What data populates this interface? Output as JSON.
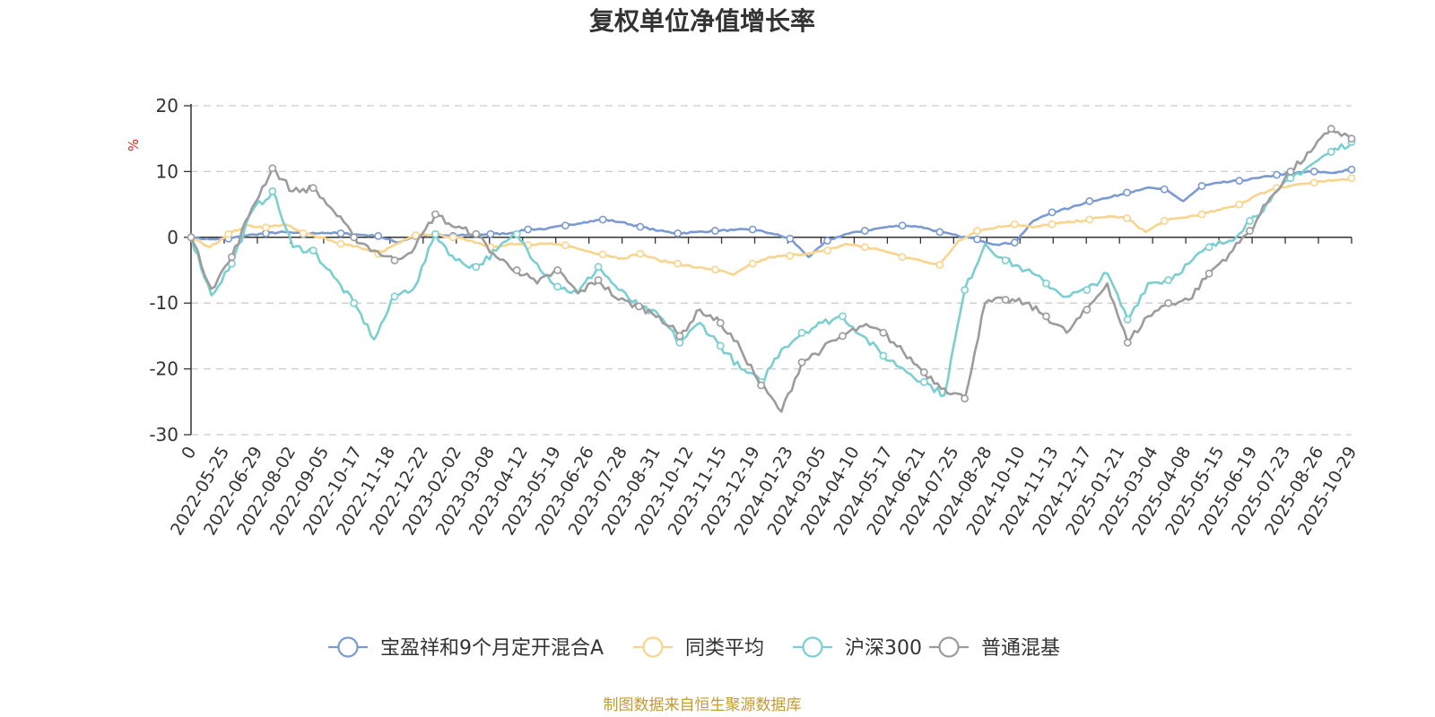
{
  "chart_data": {
    "type": "line",
    "title": "复权单位净值增长率",
    "ylabel": "%",
    "ylim": [
      -30,
      20
    ],
    "yticks": [
      20,
      10,
      0,
      -10,
      -20,
      -30
    ],
    "grid": "horizontal dashed",
    "legend_position": "bottom",
    "source_note": "制图数据来自恒生聚源数据库",
    "x_tick_labels": [
      "0",
      "2022-05-25",
      "2022-06-29",
      "2022-08-02",
      "2022-09-05",
      "2022-10-17",
      "2022-11-18",
      "2022-12-22",
      "2023-02-02",
      "2023-03-08",
      "2023-04-12",
      "2023-05-19",
      "2023-06-26",
      "2023-07-28",
      "2023-08-31",
      "2023-10-12",
      "2023-11-15",
      "2023-12-19",
      "2024-01-23",
      "2024-03-05",
      "2024-04-10",
      "2024-05-17",
      "2024-06-21",
      "2024-07-25",
      "2024-08-28",
      "2024-10-10",
      "2024-11-13",
      "2024-12-17",
      "2025-01-21",
      "2025-03-04",
      "2025-04-08",
      "2025-05-15",
      "2025-06-19",
      "2025-07-23",
      "2025-08-26",
      "2025-10-29"
    ],
    "series": [
      {
        "name": "宝盈祥和9个月定开混合A",
        "color": "#7b9ad2",
        "values": [
          0,
          -0.3,
          -0.2,
          0.3,
          0.6,
          0.8,
          0.5,
          0.7,
          0.6,
          0.4,
          0.2,
          -0.8,
          0.2,
          0.3,
          0.2,
          0.4,
          0.5,
          0.6,
          1.2,
          1.3,
          1.8,
          2.3,
          2.7,
          2.3,
          1.6,
          1.0,
          0.6,
          0.8,
          1.0,
          1.1,
          1.2,
          0.6,
          -0.2,
          -3.0,
          -0.5,
          0.5,
          1.0,
          1.5,
          1.8,
          1.6,
          0.8,
          0.2,
          -0.3,
          -1.1,
          -0.8,
          2.5,
          3.8,
          4.5,
          5.5,
          6.0,
          6.8,
          7.5,
          7.3,
          5.5,
          7.8,
          8.3,
          8.6,
          9.0,
          9.5,
          9.8,
          10.0,
          9.8,
          10.3
        ]
      },
      {
        "name": "同类平均",
        "color": "#f9d48d",
        "values": [
          0,
          -1.5,
          0.5,
          1.8,
          1.5,
          2.0,
          0.6,
          0.0,
          -1.0,
          -1.5,
          -2.5,
          -1.0,
          0.3,
          0.5,
          0.0,
          -0.5,
          -1.5,
          -1.0,
          -1.2,
          -1.0,
          -1.2,
          -2.0,
          -2.6,
          -3.2,
          -2.5,
          -3.5,
          -4.0,
          -4.6,
          -4.9,
          -5.7,
          -4.0,
          -3.0,
          -2.8,
          -2.4,
          -2.0,
          -1.0,
          -1.5,
          -2.0,
          -3.0,
          -3.5,
          -4.2,
          -0.5,
          1.0,
          1.5,
          2.0,
          1.5,
          2.0,
          2.3,
          2.7,
          3.2,
          2.9,
          0.8,
          2.5,
          3.0,
          3.5,
          4.2,
          5.0,
          6.5,
          7.5,
          8.0,
          8.3,
          8.6,
          9.0
        ]
      },
      {
        "name": "沪深300",
        "color": "#7ccfd0",
        "values": [
          0,
          -8.8,
          -4.0,
          4.0,
          7.0,
          -1.5,
          -2.0,
          -6.0,
          -10.0,
          -15.5,
          -9.0,
          -7.5,
          0.5,
          -3.5,
          -4.5,
          -2.0,
          0.5,
          -4.0,
          -7.5,
          -8.5,
          -4.5,
          -8.0,
          -10.5,
          -12.0,
          -16.0,
          -13.0,
          -16.5,
          -20.0,
          -22.0,
          -17.0,
          -14.5,
          -13.0,
          -12.0,
          -15.0,
          -18.0,
          -20.0,
          -22.0,
          -24.0,
          -8.0,
          -1.0,
          -3.5,
          -5.0,
          -7.0,
          -9.0,
          -8.0,
          -5.5,
          -12.5,
          -7.0,
          -6.5,
          -4.0,
          -1.5,
          -0.5,
          2.5,
          5.5,
          9.0,
          11.0,
          13.0,
          14.5
        ]
      },
      {
        "name": "普通混基",
        "color": "#9c9c9c",
        "values": [
          0,
          -7.8,
          -3.0,
          4.5,
          10.5,
          7.0,
          7.5,
          4.0,
          0.0,
          -2.0,
          -3.5,
          -1.5,
          3.5,
          1.5,
          0.5,
          -3.0,
          -5.0,
          -7.0,
          -5.0,
          -8.5,
          -6.5,
          -9.5,
          -10.5,
          -12.0,
          -15.0,
          -11.0,
          -13.0,
          -17.0,
          -22.5,
          -26.5,
          -19.0,
          -17.0,
          -15.0,
          -13.5,
          -14.5,
          -17.5,
          -20.5,
          -23.0,
          -24.5,
          -10.0,
          -9.5,
          -10.0,
          -12.0,
          -14.5,
          -11.0,
          -7.0,
          -16.0,
          -12.0,
          -10.0,
          -9.5,
          -5.5,
          -2.5,
          1.0,
          6.0,
          10.0,
          13.0,
          16.5,
          15.0
        ]
      }
    ]
  }
}
